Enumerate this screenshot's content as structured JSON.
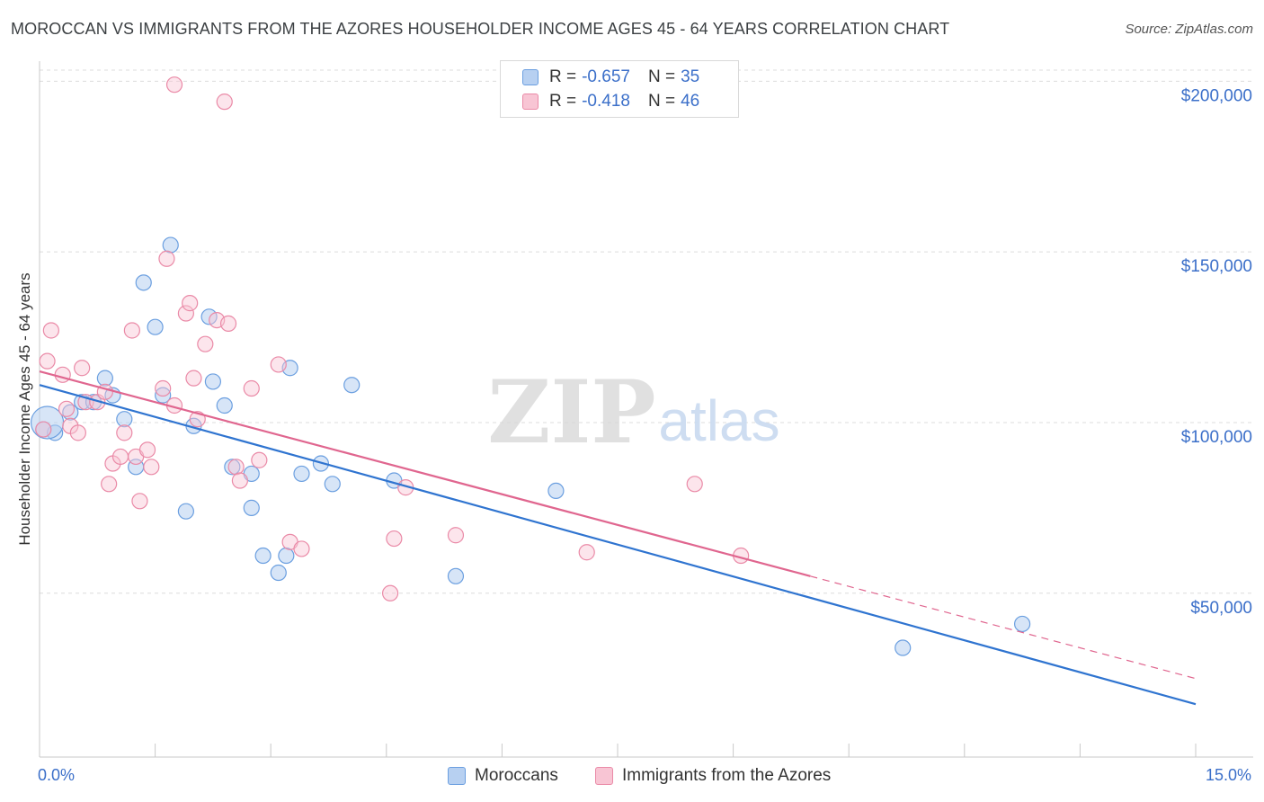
{
  "title": "MOROCCAN VS IMMIGRANTS FROM THE AZORES HOUSEHOLDER INCOME AGES 45 - 64 YEARS CORRELATION CHART",
  "source": "Source: ZipAtlas.com",
  "watermark": {
    "zip": "ZIP",
    "atlas": "atlas"
  },
  "legend": {
    "r_label": "R =",
    "n_label": "N =",
    "series": [
      {
        "r": "-0.657",
        "n": "35"
      },
      {
        "r": "-0.418",
        "n": "46"
      }
    ]
  },
  "chart_data": {
    "type": "scatter",
    "title": "MOROCCAN VS IMMIGRANTS FROM THE AZORES HOUSEHOLDER INCOME AGES 45 - 64 YEARS CORRELATION CHART",
    "xlabel": "",
    "ylabel": "Householder Income Ages 45 - 64 years",
    "xlim": [
      0,
      15
    ],
    "ylim": [
      2000,
      208000
    ],
    "x_tick_labels": [
      "0.0%",
      "15.0%"
    ],
    "y_ticks": [
      50000,
      100000,
      150000,
      200000
    ],
    "y_tick_labels": [
      "$50,000",
      "$100,000",
      "$150,000",
      "$200,000"
    ],
    "grid": true,
    "colors": {
      "moroccans": "#6b9fe0",
      "azores": "#ea8aa7",
      "moroccans_line": "#2f74d0",
      "azores_line": "#e0668f",
      "axis_text": "#3b6fc9"
    },
    "series": [
      {
        "name": "Moroccans",
        "points": [
          [
            0.05,
            98000
          ],
          [
            0.2,
            97000
          ],
          [
            0.4,
            103000
          ],
          [
            0.55,
            106000
          ],
          [
            0.7,
            106000
          ],
          [
            0.85,
            113000
          ],
          [
            0.95,
            108000
          ],
          [
            1.1,
            101000
          ],
          [
            1.25,
            87000
          ],
          [
            1.35,
            141000
          ],
          [
            1.5,
            128000
          ],
          [
            1.6,
            108000
          ],
          [
            1.7,
            152000
          ],
          [
            1.9,
            74000
          ],
          [
            2.0,
            99000
          ],
          [
            2.2,
            131000
          ],
          [
            2.25,
            112000
          ],
          [
            2.4,
            105000
          ],
          [
            2.5,
            87000
          ],
          [
            2.75,
            75000
          ],
          [
            2.75,
            85000
          ],
          [
            2.9,
            61000
          ],
          [
            3.1,
            56000
          ],
          [
            3.2,
            61000
          ],
          [
            3.25,
            116000
          ],
          [
            3.4,
            85000
          ],
          [
            3.65,
            88000
          ],
          [
            3.8,
            82000
          ],
          [
            4.05,
            111000
          ],
          [
            4.6,
            83000
          ],
          [
            5.4,
            55000
          ],
          [
            6.7,
            80000
          ],
          [
            11.2,
            34000
          ],
          [
            12.75,
            41000
          ],
          [
            0.1,
            100000
          ]
        ],
        "trend": {
          "x": [
            0,
            15
          ],
          "y": [
            111000,
            17500
          ]
        }
      },
      {
        "name": "Immigrants from the Azores",
        "points": [
          [
            0.05,
            98000
          ],
          [
            0.1,
            118000
          ],
          [
            0.15,
            127000
          ],
          [
            0.3,
            114000
          ],
          [
            0.35,
            104000
          ],
          [
            0.4,
            99000
          ],
          [
            0.5,
            97000
          ],
          [
            0.55,
            116000
          ],
          [
            0.6,
            106000
          ],
          [
            0.75,
            106000
          ],
          [
            0.85,
            109000
          ],
          [
            0.9,
            82000
          ],
          [
            0.95,
            88000
          ],
          [
            1.05,
            90000
          ],
          [
            1.1,
            97000
          ],
          [
            1.2,
            127000
          ],
          [
            1.25,
            90000
          ],
          [
            1.3,
            77000
          ],
          [
            1.4,
            92000
          ],
          [
            1.45,
            87000
          ],
          [
            1.6,
            110000
          ],
          [
            1.65,
            148000
          ],
          [
            1.75,
            105000
          ],
          [
            1.9,
            132000
          ],
          [
            1.95,
            135000
          ],
          [
            2.0,
            113000
          ],
          [
            2.05,
            101000
          ],
          [
            2.15,
            123000
          ],
          [
            2.3,
            130000
          ],
          [
            2.45,
            129000
          ],
          [
            2.55,
            87000
          ],
          [
            2.6,
            83000
          ],
          [
            2.75,
            110000
          ],
          [
            2.85,
            89000
          ],
          [
            3.1,
            117000
          ],
          [
            3.25,
            65000
          ],
          [
            3.4,
            63000
          ],
          [
            4.55,
            50000
          ],
          [
            4.6,
            66000
          ],
          [
            4.75,
            81000
          ],
          [
            5.4,
            67000
          ],
          [
            7.1,
            62000
          ],
          [
            8.5,
            82000
          ],
          [
            9.1,
            61000
          ],
          [
            1.75,
            199000
          ],
          [
            2.4,
            194000
          ]
        ],
        "trend": {
          "x": [
            0,
            10
          ],
          "y": [
            115000,
            55000
          ]
        },
        "trend_dashed": {
          "x": [
            10,
            15
          ],
          "y": [
            55000,
            25000
          ]
        }
      }
    ]
  }
}
